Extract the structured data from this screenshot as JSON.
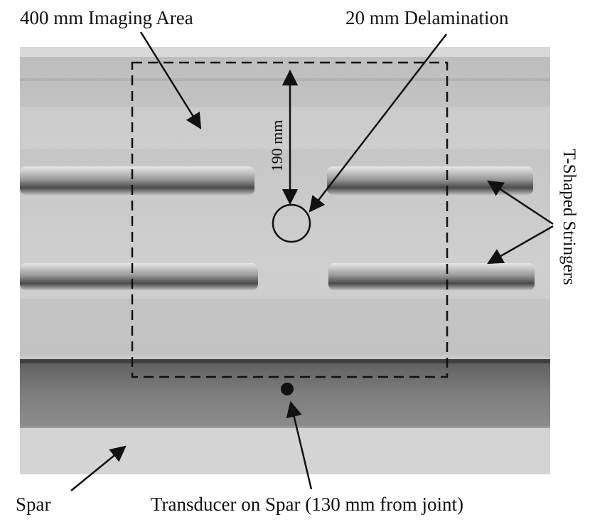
{
  "labels": {
    "imaging_area": "400 mm Imaging Area",
    "delamination": "20 mm Delamination",
    "dimension": "190  mm",
    "stringers": "T-Shaped Stringers",
    "spar": "Spar",
    "transducer": "Transducer on Spar (130 mm from joint)"
  },
  "colors": {
    "panel": "#c9c9c9",
    "spar": "#7a7a7a",
    "stringer_shadow": "#5a5a5a",
    "annotation": "#111111"
  }
}
